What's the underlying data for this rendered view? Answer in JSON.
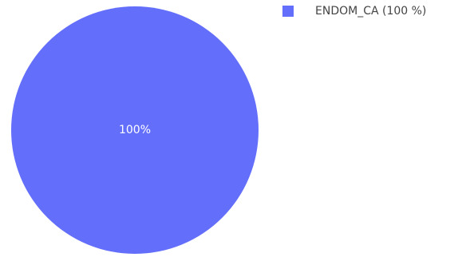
{
  "chart_data": {
    "type": "pie",
    "slices": [
      {
        "label": "ENDOM_CA",
        "value": 100,
        "percent_label": "100%",
        "legend_text": "ENDOM_CA (100 %)",
        "color": "#636efa"
      }
    ],
    "legend_placement": "top-right"
  }
}
